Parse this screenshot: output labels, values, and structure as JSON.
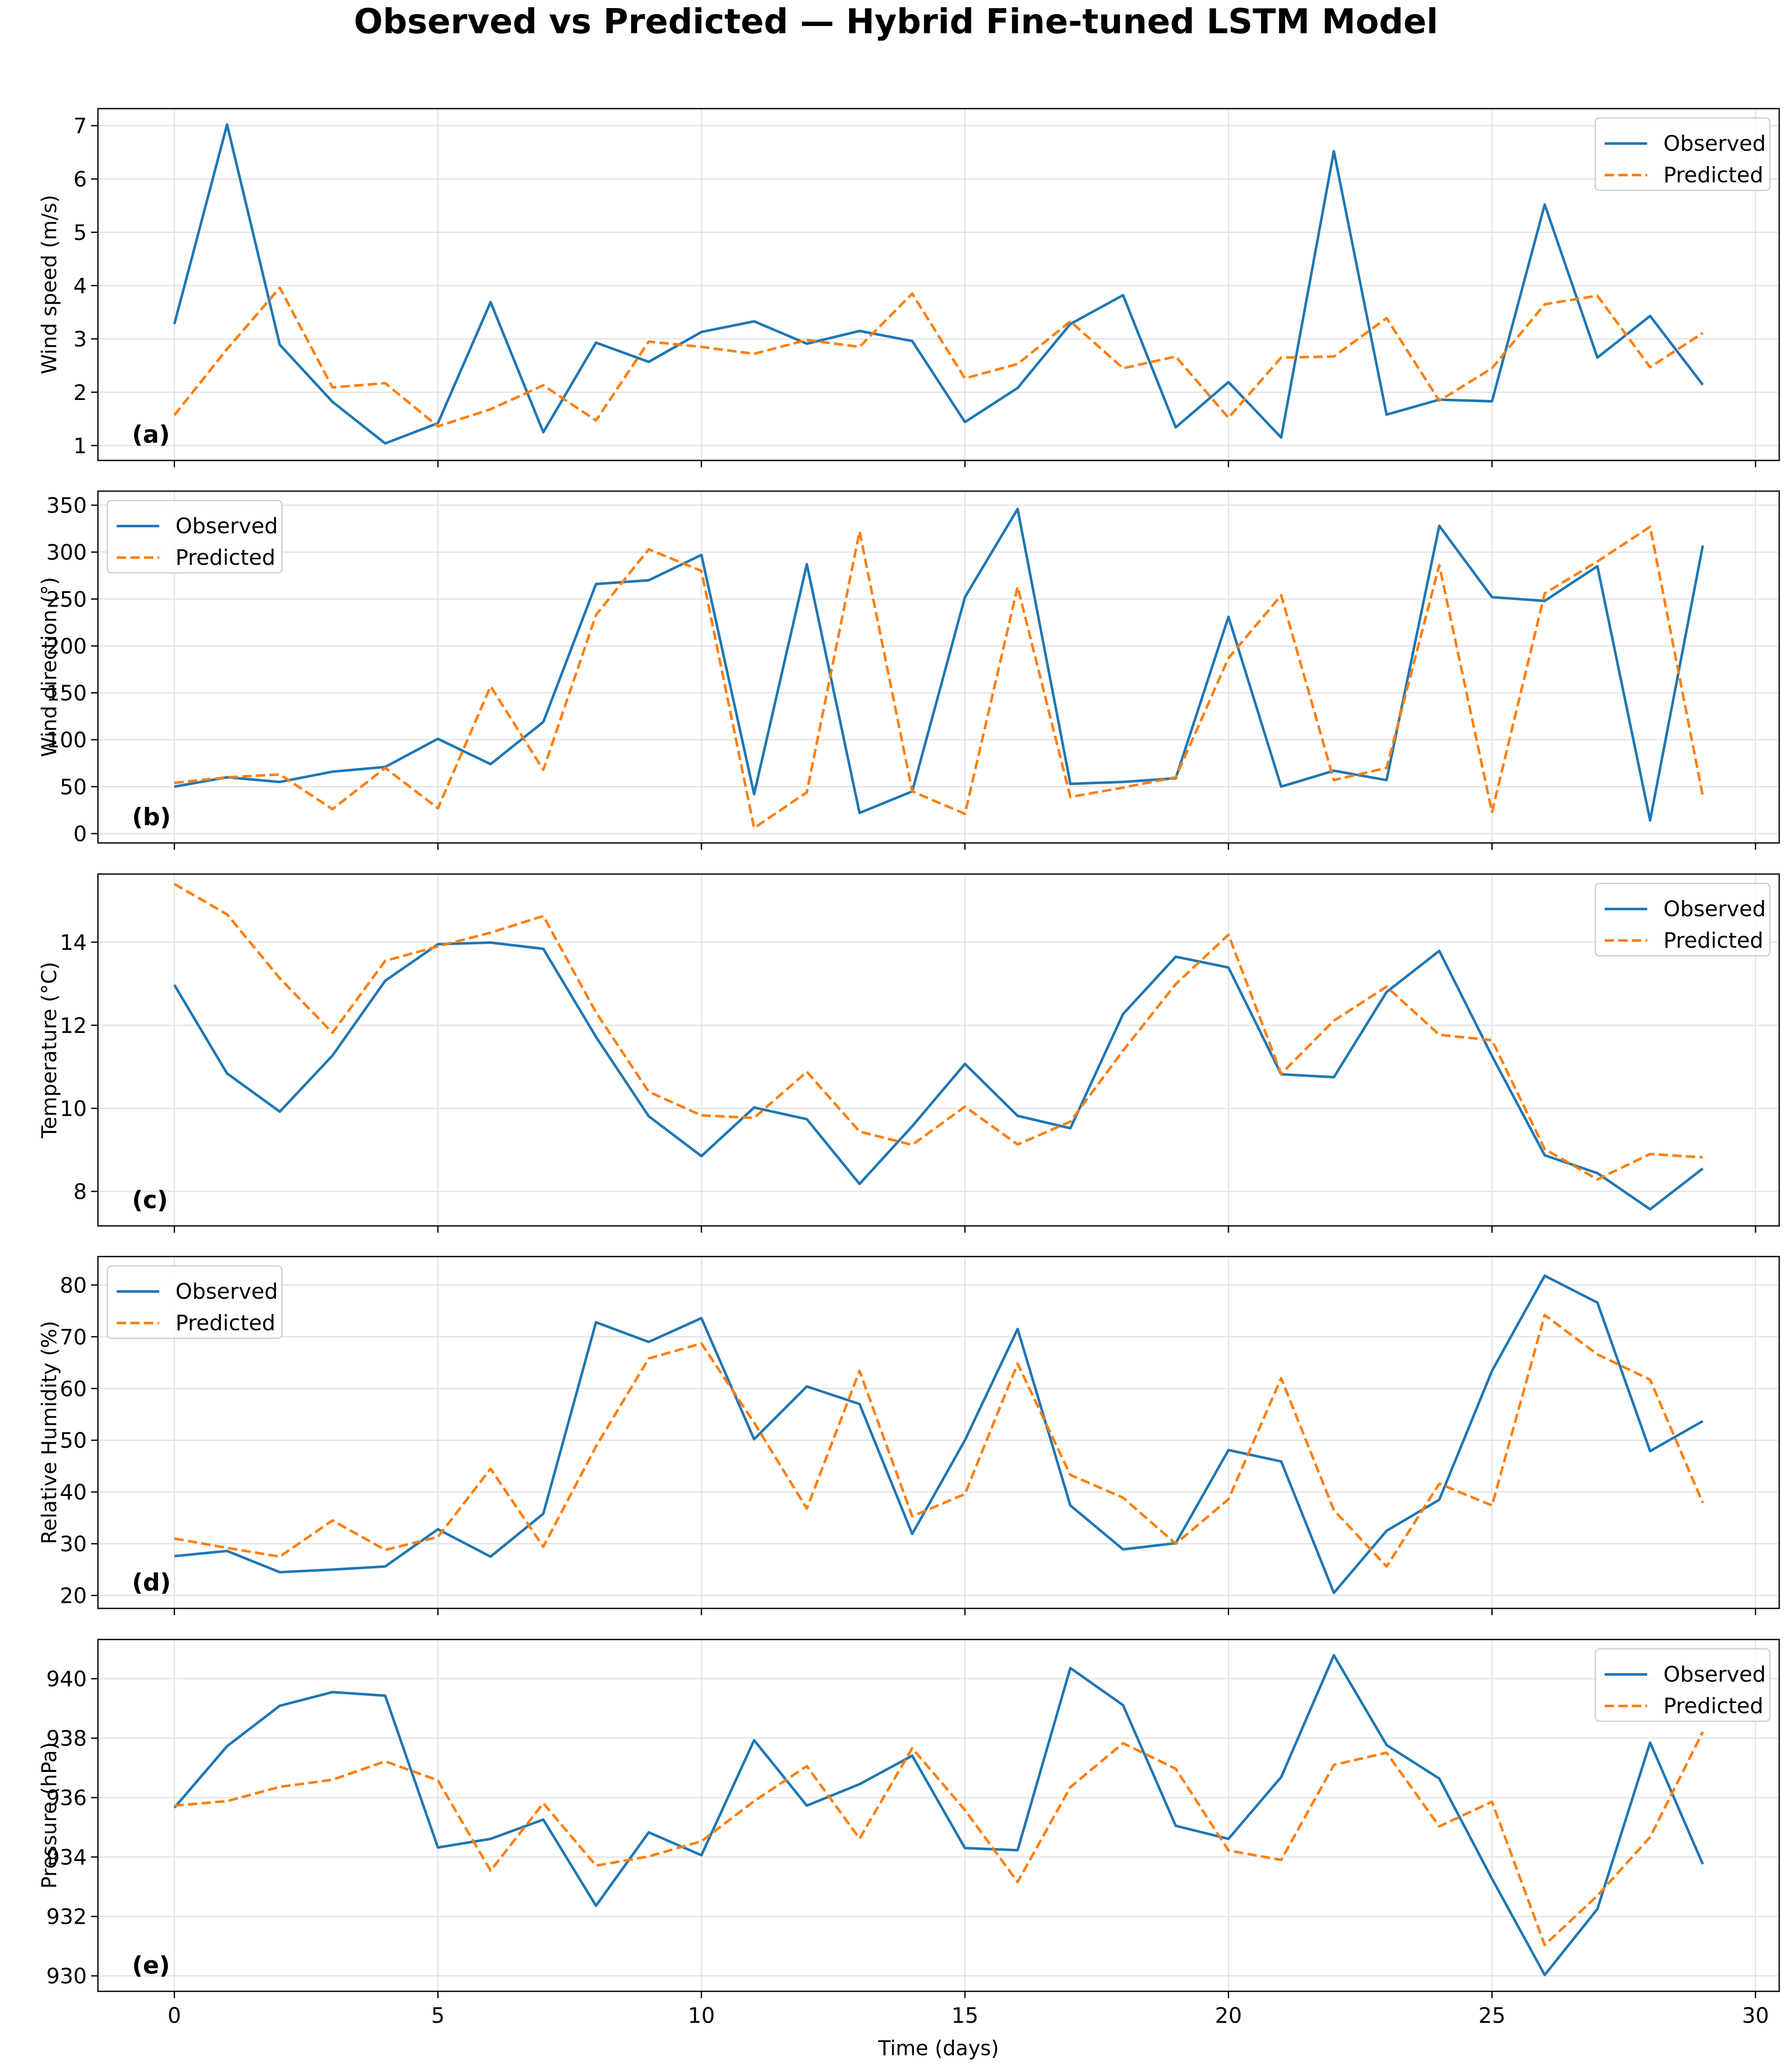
{
  "chart_data": {
    "title": "Observed vs Predicted — Hybrid Fine-tuned LSTM Model",
    "type": "line",
    "xlabel": "Time (days)",
    "xlim": [
      -1.45,
      30.45
    ],
    "xticks": [
      0,
      5,
      10,
      15,
      20,
      25,
      30
    ],
    "x": [
      0,
      1,
      2,
      3,
      4,
      5,
      6,
      7,
      8,
      9,
      10,
      11,
      12,
      13,
      14,
      15,
      16,
      17,
      18,
      19,
      20,
      21,
      22,
      23,
      24,
      25,
      26,
      27,
      28,
      29
    ],
    "colors": {
      "observed": "#1f77b4",
      "predicted": "#ff7f0e"
    },
    "grid": true,
    "panels": [
      {
        "label": "(a)",
        "ylabel": "Wind speed (m/s)",
        "ylim": [
          0.72,
          7.32
        ],
        "yticks": [
          1,
          2,
          3,
          4,
          5,
          6,
          7
        ],
        "legend": "top-right",
        "series": [
          {
            "name": "Observed",
            "style": "solid",
            "values": [
              3.28,
              7.02,
              2.89,
              1.82,
              1.04,
              1.42,
              3.69,
              1.25,
              2.93,
              2.57,
              3.13,
              3.33,
              2.91,
              3.15,
              2.96,
              1.44,
              2.08,
              3.28,
              3.82,
              1.34,
              2.19,
              1.15,
              6.52,
              1.58,
              1.86,
              1.83,
              5.52,
              2.65,
              3.43,
              2.14
            ]
          },
          {
            "name": "Predicted",
            "style": "dashed",
            "values": [
              1.57,
              2.81,
              3.96,
              2.09,
              2.17,
              1.36,
              1.68,
              2.13,
              1.47,
              2.95,
              2.85,
              2.72,
              2.98,
              2.85,
              3.85,
              2.26,
              2.53,
              3.33,
              2.45,
              2.67,
              1.52,
              2.65,
              2.67,
              3.39,
              1.84,
              2.45,
              3.65,
              3.81,
              2.47,
              3.11
            ]
          }
        ]
      },
      {
        "label": "(b)",
        "ylabel": "Wind direction (°)",
        "ylim": [
          -10,
          365
        ],
        "yticks": [
          0,
          50,
          100,
          150,
          200,
          250,
          300,
          350
        ],
        "legend": "top-left",
        "series": [
          {
            "name": "Observed",
            "style": "solid",
            "values": [
              50,
              60,
              55,
              66,
              71,
              101,
              74,
              119,
              266,
              270,
              297,
              42,
              287,
              22,
              45,
              252,
              346,
              53,
              55,
              59,
              231,
              50,
              67,
              57,
              328,
              252,
              248,
              285,
              14,
              307
            ]
          },
          {
            "name": "Predicted",
            "style": "dashed",
            "values": [
              54,
              60,
              63,
              26,
              70,
              27,
              157,
              68,
              233,
              303,
              280,
              6,
              44,
              322,
              45,
              21,
              263,
              39,
              49,
              60,
              187,
              254,
              57,
              70,
              286,
              23,
              256,
              290,
              327,
              40
            ]
          }
        ]
      },
      {
        "label": "(c)",
        "ylabel": "Temperature (°C)",
        "ylim": [
          7.17,
          15.64
        ],
        "yticks": [
          8,
          10,
          12,
          14
        ],
        "legend": "top-right",
        "series": [
          {
            "name": "Observed",
            "style": "solid",
            "values": [
              12.97,
              10.84,
              9.92,
              11.27,
              13.07,
              13.95,
              13.99,
              13.84,
              11.72,
              9.81,
              8.85,
              10.02,
              9.74,
              8.18,
              9.57,
              11.07,
              9.82,
              9.52,
              12.27,
              13.65,
              13.39,
              10.82,
              10.75,
              12.8,
              13.79,
              11.26,
              8.87,
              8.44,
              7.57,
              8.55
            ]
          },
          {
            "name": "Predicted",
            "style": "dashed",
            "values": [
              15.4,
              14.67,
              13.13,
              11.82,
              13.55,
              13.9,
              14.23,
              14.63,
              12.31,
              10.4,
              9.83,
              9.77,
              10.88,
              9.44,
              9.12,
              10.04,
              9.13,
              9.68,
              11.39,
              12.99,
              14.18,
              10.83,
              12.11,
              12.93,
              11.77,
              11.64,
              9.02,
              8.29,
              8.9,
              8.82
            ]
          }
        ]
      },
      {
        "label": "(d)",
        "ylabel": "Relative Humidity (%)",
        "ylim": [
          17.5,
          85.5
        ],
        "yticks": [
          20,
          30,
          40,
          50,
          60,
          70,
          80
        ],
        "legend": "top-left",
        "series": [
          {
            "name": "Observed",
            "style": "solid",
            "values": [
              27.6,
              28.6,
              24.5,
              25.0,
              25.6,
              32.8,
              27.5,
              35.8,
              72.8,
              69.0,
              73.6,
              50.2,
              60.4,
              57.0,
              31.9,
              50.0,
              71.5,
              37.4,
              28.9,
              30.1,
              48.1,
              45.9,
              20.5,
              32.5,
              38.5,
              63.4,
              81.8,
              76.6,
              47.9,
              53.7
            ]
          },
          {
            "name": "Predicted",
            "style": "dashed",
            "values": [
              31.0,
              29.2,
              27.5,
              34.5,
              28.8,
              31.3,
              44.5,
              29.4,
              48.8,
              65.8,
              68.7,
              53.4,
              36.8,
              63.4,
              35.3,
              39.6,
              64.8,
              43.3,
              38.9,
              30.0,
              38.6,
              62.0,
              36.5,
              25.6,
              41.6,
              37.4,
              74.2,
              66.6,
              61.7,
              37.9
            ]
          }
        ]
      },
      {
        "label": "(e)",
        "ylabel": "Pressure (hPa)",
        "ylim": [
          929.48,
          941.32
        ],
        "yticks": [
          930,
          932,
          934,
          936,
          938,
          940
        ],
        "legend": "top-right",
        "series": [
          {
            "name": "Observed",
            "style": "solid",
            "values": [
              935.66,
              937.73,
              939.09,
              939.55,
              939.43,
              934.32,
              934.61,
              935.26,
              932.36,
              934.83,
              934.06,
              937.93,
              935.73,
              936.45,
              937.41,
              934.3,
              934.23,
              940.36,
              939.11,
              935.05,
              934.61,
              936.69,
              940.79,
              937.77,
              936.64,
              933.27,
              930.03,
              932.25,
              937.85,
              933.76
            ]
          },
          {
            "name": "Predicted",
            "style": "dashed",
            "values": [
              935.73,
              935.88,
              936.36,
              936.6,
              937.22,
              936.58,
              933.54,
              935.81,
              933.71,
              934.02,
              934.53,
              935.88,
              937.06,
              934.62,
              937.66,
              935.58,
              933.16,
              936.35,
              937.83,
              936.97,
              934.22,
              933.9,
              937.1,
              937.51,
              935.03,
              935.86,
              931.04,
              932.7,
              934.67,
              938.21
            ]
          }
        ]
      }
    ]
  }
}
